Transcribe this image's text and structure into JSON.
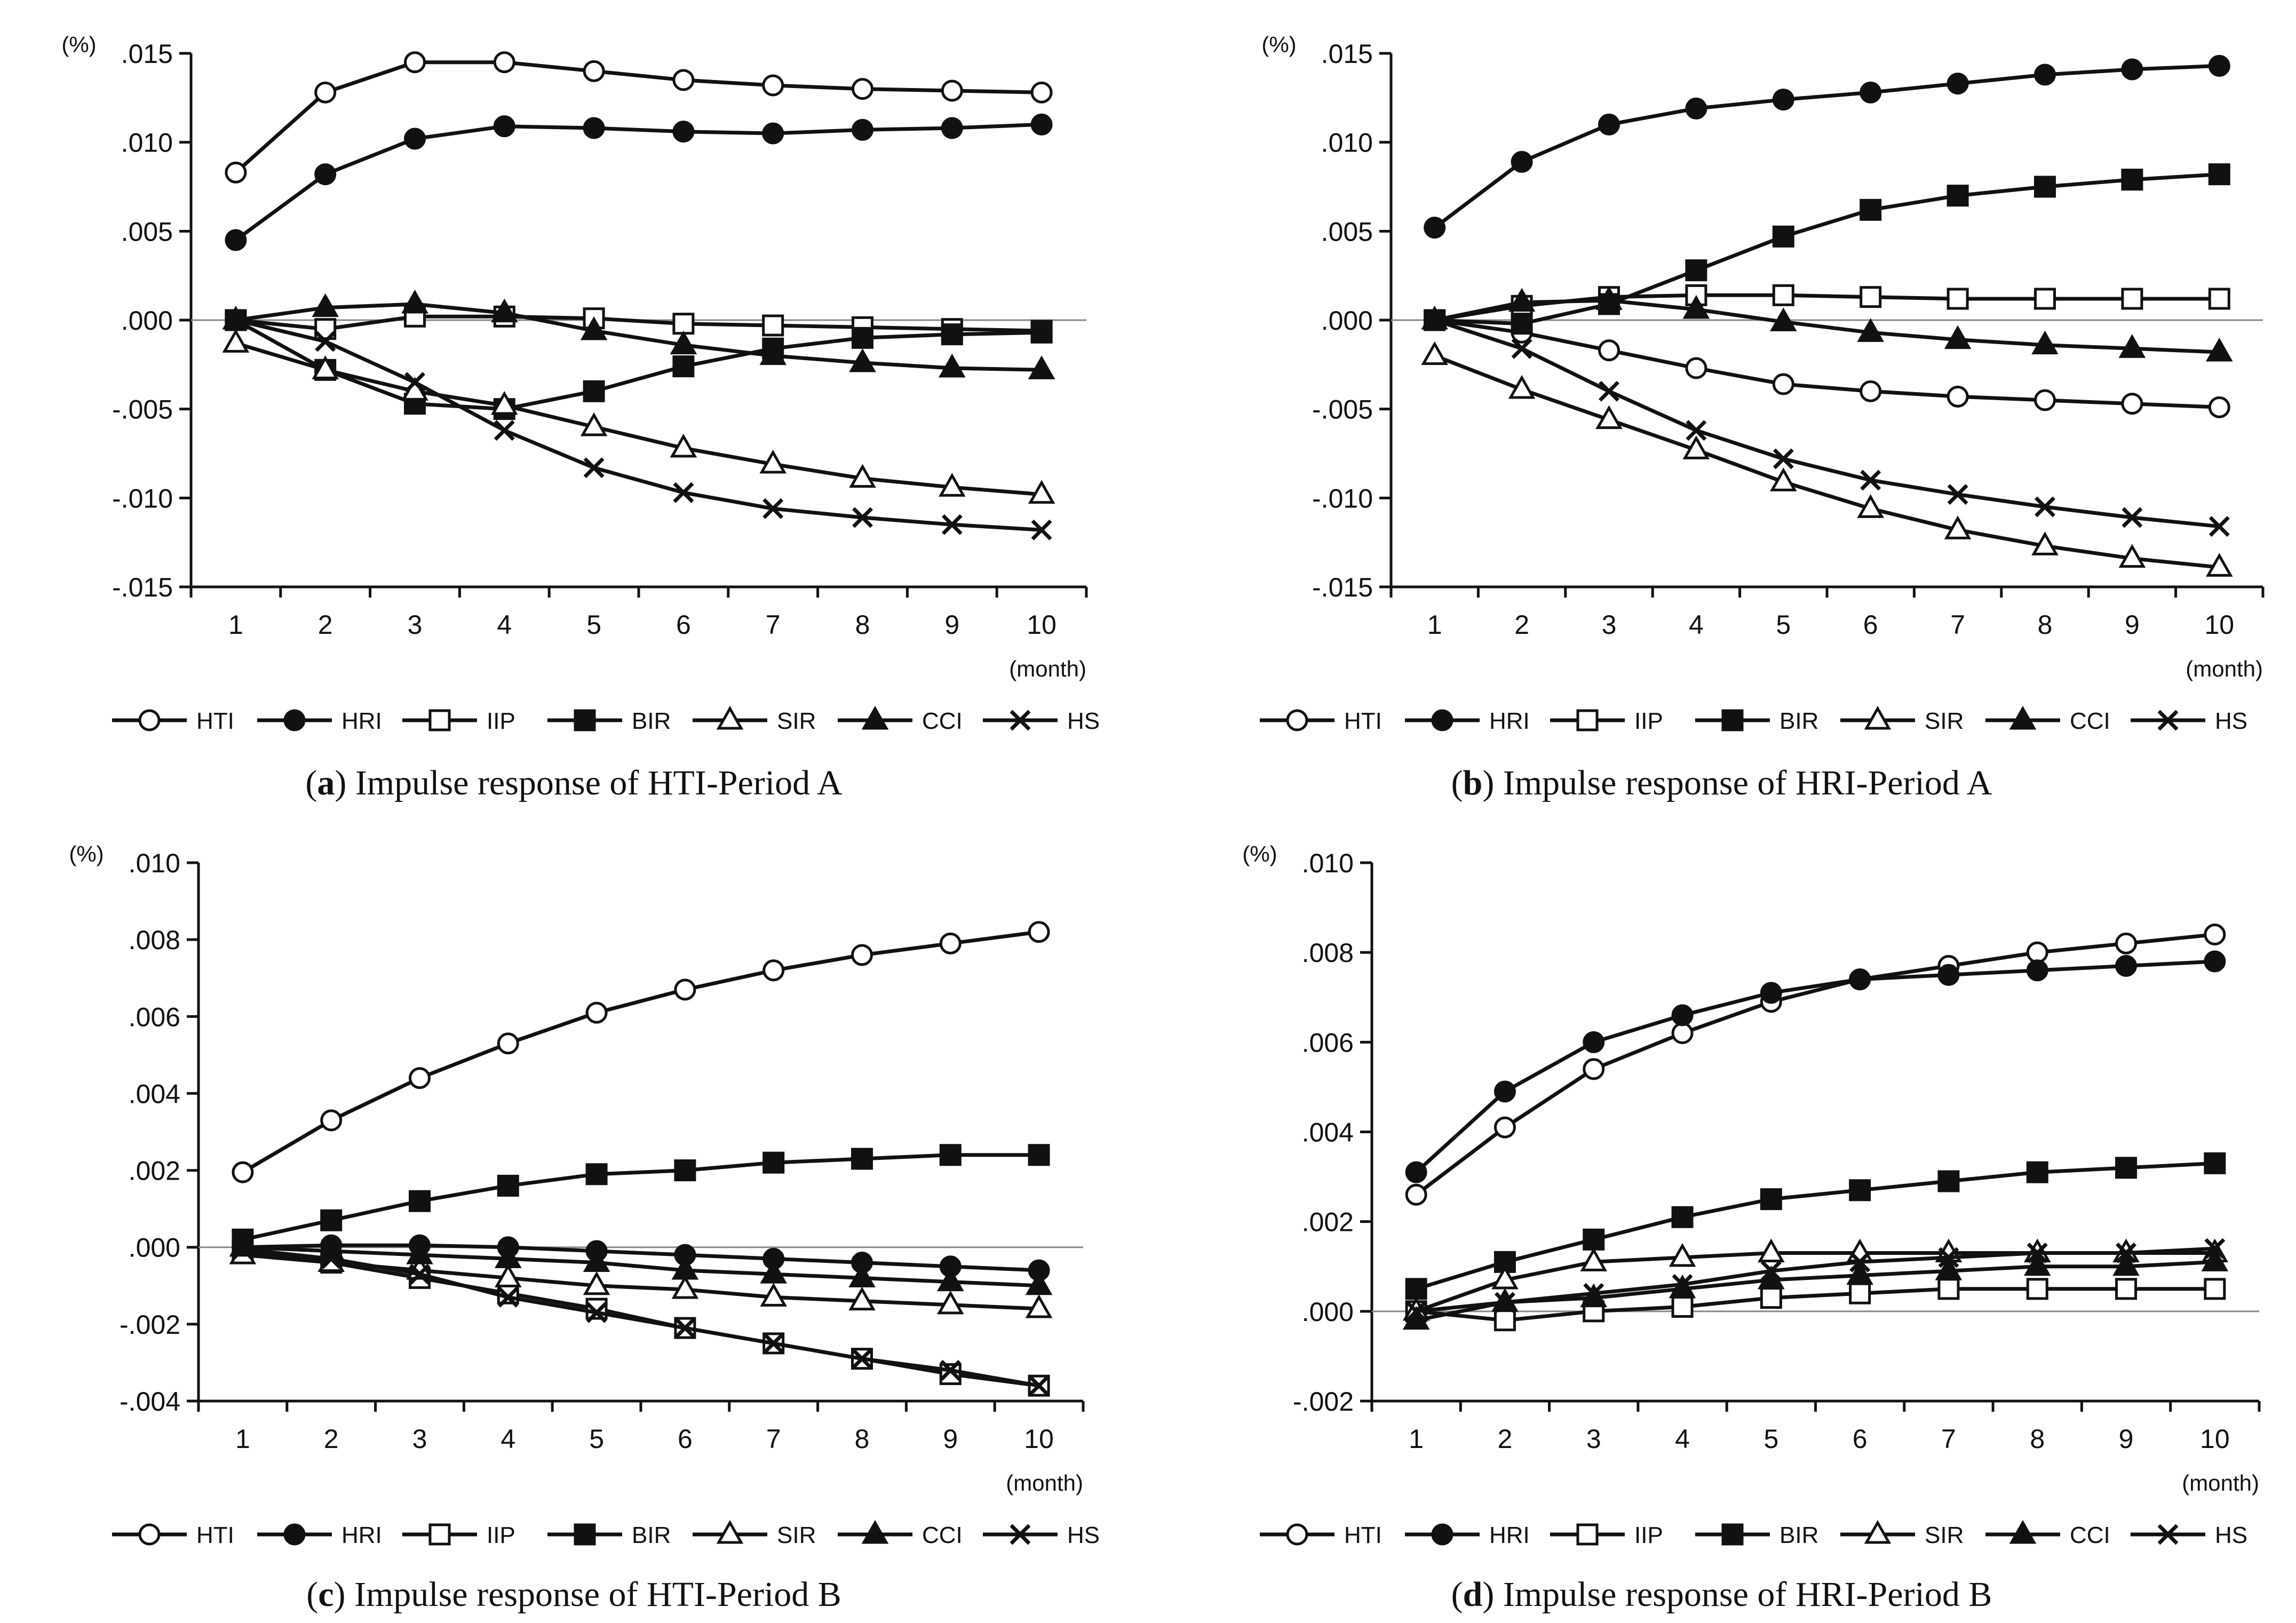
{
  "legend": [
    "HTI",
    "HRI",
    "IIP",
    "BIR",
    "SIR",
    "CCI",
    "HS"
  ],
  "chart_data": [
    {
      "type": "line",
      "panel_id": "a",
      "label": "a",
      "caption": "Impulse response of HTI-Period A",
      "unit": "(%)",
      "xlabel": "(month)",
      "x": [
        1,
        2,
        3,
        4,
        5,
        6,
        7,
        8,
        9,
        10
      ],
      "ylim": [
        -0.015,
        0.015
      ],
      "yticks": [
        ".015",
        ".010",
        ".005",
        ".000",
        "-.005",
        "-.010",
        "-.015"
      ],
      "series": [
        {
          "name": "HTI",
          "values": [
            0.0083,
            0.0128,
            0.0145,
            0.0145,
            0.014,
            0.0135,
            0.0132,
            0.013,
            0.0129,
            0.0128
          ]
        },
        {
          "name": "HRI",
          "values": [
            0.0045,
            0.0082,
            0.0102,
            0.0109,
            0.0108,
            0.0106,
            0.0105,
            0.0107,
            0.0108,
            0.011
          ]
        },
        {
          "name": "IIP",
          "values": [
            0.0,
            -0.0005,
            0.0002,
            0.0002,
            0.0001,
            -0.0002,
            -0.0003,
            -0.0004,
            -0.0005,
            -0.0006
          ]
        },
        {
          "name": "BIR",
          "values": [
            0.0,
            -0.0028,
            -0.0047,
            -0.005,
            -0.004,
            -0.0026,
            -0.0016,
            -0.001,
            -0.0008,
            -0.0007
          ]
        },
        {
          "name": "SIR",
          "values": [
            -0.0013,
            -0.0028,
            -0.004,
            -0.0048,
            -0.006,
            -0.0072,
            -0.0081,
            -0.0089,
            -0.0094,
            -0.0098
          ]
        },
        {
          "name": "CCI",
          "values": [
            0.0,
            0.0007,
            0.0009,
            0.0004,
            -0.0006,
            -0.0014,
            -0.002,
            -0.0024,
            -0.0027,
            -0.0028
          ]
        },
        {
          "name": "HS",
          "values": [
            0.0,
            -0.0012,
            -0.0035,
            -0.0062,
            -0.0083,
            -0.0097,
            -0.0106,
            -0.0111,
            -0.0115,
            -0.0118
          ]
        }
      ]
    },
    {
      "type": "line",
      "panel_id": "b",
      "label": "b",
      "caption": "Impulse response of HRI-Period A",
      "unit": "(%)",
      "xlabel": "(month)",
      "x": [
        1,
        2,
        3,
        4,
        5,
        6,
        7,
        8,
        9,
        10
      ],
      "ylim": [
        -0.015,
        0.015
      ],
      "yticks": [
        ".015",
        ".010",
        ".005",
        ".000",
        "-.005",
        "-.010",
        "-.015"
      ],
      "series": [
        {
          "name": "HTI",
          "values": [
            0.0,
            -0.0007,
            -0.0017,
            -0.0027,
            -0.0036,
            -0.004,
            -0.0043,
            -0.0045,
            -0.0047,
            -0.0049
          ]
        },
        {
          "name": "HRI",
          "values": [
            0.0052,
            0.0089,
            0.011,
            0.0119,
            0.0124,
            0.0128,
            0.0133,
            0.0138,
            0.0141,
            0.0143
          ]
        },
        {
          "name": "IIP",
          "values": [
            0.0,
            0.0008,
            0.0013,
            0.0014,
            0.0014,
            0.0013,
            0.0012,
            0.0012,
            0.0012,
            0.0012
          ]
        },
        {
          "name": "BIR",
          "values": [
            0.0,
            -0.0002,
            0.0009,
            0.0028,
            0.0047,
            0.0062,
            0.007,
            0.0075,
            0.0079,
            0.0082
          ]
        },
        {
          "name": "SIR",
          "values": [
            -0.002,
            -0.0039,
            -0.0056,
            -0.0073,
            -0.0091,
            -0.0106,
            -0.0118,
            -0.0127,
            -0.0134,
            -0.0139
          ]
        },
        {
          "name": "CCI",
          "values": [
            0.0,
            0.001,
            0.0011,
            0.0006,
            -0.0001,
            -0.0007,
            -0.0011,
            -0.0014,
            -0.0016,
            -0.0018
          ]
        },
        {
          "name": "HS",
          "values": [
            0.0,
            -0.0016,
            -0.004,
            -0.0062,
            -0.0078,
            -0.009,
            -0.0098,
            -0.0105,
            -0.0111,
            -0.0116
          ]
        }
      ]
    },
    {
      "type": "line",
      "panel_id": "c",
      "label": "c",
      "caption": "Impulse response of HTI-Period B",
      "unit": "(%)",
      "xlabel": "(month)",
      "x": [
        1,
        2,
        3,
        4,
        5,
        6,
        7,
        8,
        9,
        10
      ],
      "ylim": [
        -0.004,
        0.01
      ],
      "yticks": [
        ".010",
        ".008",
        ".006",
        ".004",
        ".002",
        ".000",
        "-.002",
        "-.004"
      ],
      "series": [
        {
          "name": "HTI",
          "values": [
            0.00195,
            0.0033,
            0.0044,
            0.0053,
            0.0061,
            0.0067,
            0.0072,
            0.0076,
            0.0079,
            0.0082
          ]
        },
        {
          "name": "HRI",
          "values": [
            0.0,
            5e-05,
            5e-05,
            0.0,
            -0.0001,
            -0.0002,
            -0.0003,
            -0.0004,
            -0.0005,
            -0.0006
          ]
        },
        {
          "name": "IIP",
          "values": [
            -0.0001,
            -0.0004,
            -0.0008,
            -0.0012,
            -0.0016,
            -0.0021,
            -0.0025,
            -0.0029,
            -0.0033,
            -0.0036
          ]
        },
        {
          "name": "BIR",
          "values": [
            0.0002,
            0.0007,
            0.0012,
            0.0016,
            0.0019,
            0.002,
            0.0022,
            0.0023,
            0.0024,
            0.0024
          ]
        },
        {
          "name": "SIR",
          "values": [
            -0.0002,
            -0.0004,
            -0.0006,
            -0.0008,
            -0.001,
            -0.0011,
            -0.0013,
            -0.0014,
            -0.0015,
            -0.0016
          ]
        },
        {
          "name": "CCI",
          "values": [
            0.0,
            -0.0001,
            -0.0002,
            -0.0003,
            -0.0004,
            -0.0006,
            -0.0007,
            -0.0008,
            -0.0009,
            -0.001
          ]
        },
        {
          "name": "HS",
          "values": [
            -5e-05,
            -0.0003,
            -0.0007,
            -0.0013,
            -0.0017,
            -0.0021,
            -0.0025,
            -0.0029,
            -0.0032,
            -0.0036
          ]
        }
      ]
    },
    {
      "type": "line",
      "panel_id": "d",
      "label": "d",
      "caption": "Impulse response of HRI-Period B",
      "unit": "(%)",
      "xlabel": "(month)",
      "x": [
        1,
        2,
        3,
        4,
        5,
        6,
        7,
        8,
        9,
        10
      ],
      "ylim": [
        -0.002,
        0.01
      ],
      "yticks": [
        ".010",
        ".008",
        ".006",
        ".004",
        ".002",
        ".000",
        "-.002"
      ],
      "series": [
        {
          "name": "HTI",
          "values": [
            0.0026,
            0.0041,
            0.0054,
            0.0062,
            0.0069,
            0.0074,
            0.0077,
            0.008,
            0.0082,
            0.0084
          ]
        },
        {
          "name": "HRI",
          "values": [
            0.0031,
            0.0049,
            0.006,
            0.0066,
            0.0071,
            0.0074,
            0.0075,
            0.0076,
            0.0077,
            0.0078
          ]
        },
        {
          "name": "IIP",
          "values": [
            0.0,
            -0.0002,
            0.0,
            0.0001,
            0.0003,
            0.0004,
            0.0005,
            0.0005,
            0.0005,
            0.0005
          ]
        },
        {
          "name": "BIR",
          "values": [
            0.0005,
            0.0011,
            0.0016,
            0.0021,
            0.0025,
            0.0027,
            0.0029,
            0.0031,
            0.0032,
            0.0033
          ]
        },
        {
          "name": "SIR",
          "values": [
            0.0,
            0.0007,
            0.0011,
            0.0012,
            0.0013,
            0.0013,
            0.0013,
            0.0013,
            0.0013,
            0.0013
          ]
        },
        {
          "name": "CCI",
          "values": [
            -0.0002,
            0.0002,
            0.0003,
            0.0005,
            0.0007,
            0.0008,
            0.0009,
            0.001,
            0.001,
            0.0011
          ]
        },
        {
          "name": "HS",
          "values": [
            0.0,
            0.0002,
            0.0004,
            0.0006,
            0.0009,
            0.0011,
            0.0012,
            0.0013,
            0.0013,
            0.0014
          ]
        }
      ]
    }
  ]
}
